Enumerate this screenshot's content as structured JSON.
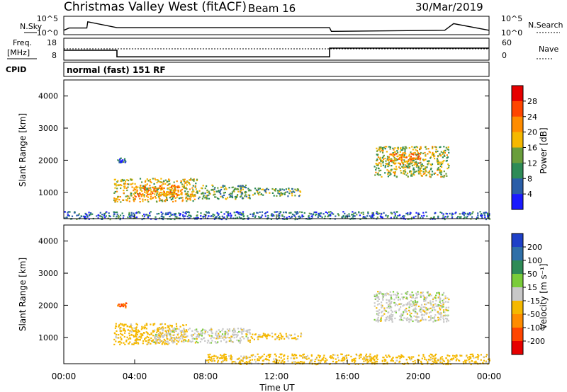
{
  "header": {
    "station": "Christmas Valley West (fitACF)",
    "beam": "Beam 16",
    "date": "30/Mar/2019"
  },
  "nsky_panel": {
    "left_label": "N.Sky",
    "left_ticks": [
      "10^5",
      "10^0"
    ],
    "right_label": "N.Search",
    "right_ticks": [
      "10^5",
      "10^0"
    ]
  },
  "freq_panel": {
    "left_label_1": "Freq.",
    "left_label_2": "[MHz]",
    "left_ticks": [
      "18",
      "8"
    ],
    "right_label": "Nave",
    "right_ticks": [
      "60",
      "0"
    ]
  },
  "cpid": {
    "label": "CPID",
    "value": "normal (fast) 151 RF"
  },
  "power_panel": {
    "ylabel": "Slant Range [km]",
    "yticks": [
      "4000",
      "3000",
      "2000",
      "1000"
    ],
    "colorbar_label": "Power [dB]",
    "colorbar_ticks": [
      "28",
      "24",
      "20",
      "16",
      "12",
      "8",
      "4"
    ],
    "colorbar_colors": [
      "#e60000",
      "#ff4500",
      "#ff8c00",
      "#f5b800",
      "#6a9e3c",
      "#2e8b57",
      "#2a5ea8",
      "#1a1aff"
    ]
  },
  "velocity_panel": {
    "ylabel": "Slant Range [km]",
    "yticks": [
      "4000",
      "3000",
      "2000",
      "1000"
    ],
    "colorbar_label": "Velocity [m s⁻¹]",
    "colorbar_ticks": [
      "200",
      "100",
      "50",
      "15",
      "-15",
      "-50",
      "-100",
      "-200"
    ],
    "colorbar_colors": [
      "#1e40c8",
      "#2f6fa8",
      "#2e8b57",
      "#7acc3a",
      "#c8c8c8",
      "#f5b800",
      "#ff8c00",
      "#ff4500",
      "#e60000"
    ]
  },
  "x_axis": {
    "ticks": [
      "00:00",
      "04:00",
      "08:00",
      "12:00",
      "16:00",
      "20:00",
      "00:00"
    ],
    "label": "Time UT"
  },
  "chart_data": [
    {
      "type": "line",
      "name": "N.Sky / N.Search noise",
      "x": [
        0,
        0.3,
        1.3,
        1.35,
        3,
        3.1,
        15,
        15.1,
        21.5,
        22,
        24
      ],
      "y": [
        1.2,
        1.8,
        1.8,
        3.5,
        1.9,
        1.9,
        1.9,
        0.9,
        1.2,
        3.0,
        1.2
      ],
      "xlim": [
        0,
        24
      ],
      "ylim_log10": [
        0,
        5
      ]
    },
    {
      "type": "line",
      "name": "Transmit frequency [MHz]",
      "series": [
        {
          "name": "Freq.",
          "x": [
            0,
            3,
            3,
            15,
            15,
            24
          ],
          "y": [
            12.5,
            12.5,
            9.5,
            9.5,
            13.5,
            13.5
          ]
        }
      ],
      "xlim": [
        0,
        24
      ],
      "ylim": [
        8,
        18
      ]
    },
    {
      "type": "heatmap",
      "quantity": "Power [dB]",
      "x_unit": "hours UT",
      "y_unit": "slant range km",
      "xlim": [
        0,
        24
      ],
      "ylim": [
        180,
        4500
      ],
      "regions": [
        {
          "x0": 2.8,
          "x1": 7.5,
          "y0": 720,
          "y1": 1450,
          "value": 16
        },
        {
          "x0": 4.0,
          "x1": 6.5,
          "y0": 880,
          "y1": 1250,
          "value": 20
        },
        {
          "x0": 7.5,
          "x1": 10.5,
          "y0": 800,
          "y1": 1250,
          "value": 12
        },
        {
          "x0": 10.5,
          "x1": 13.4,
          "y0": 900,
          "y1": 1150,
          "value": 12
        },
        {
          "x0": 17.5,
          "x1": 21.7,
          "y0": 1500,
          "y1": 2450,
          "value": 14
        },
        {
          "x0": 18.2,
          "x1": 20.2,
          "y0": 1900,
          "y1": 2250,
          "value": 20
        },
        {
          "x0": 3.0,
          "x1": 3.5,
          "y0": 1950,
          "y1": 2100,
          "value": 8
        },
        {
          "x0": 0,
          "x1": 24,
          "y0": 180,
          "y1": 420,
          "value": 8
        }
      ]
    },
    {
      "type": "heatmap",
      "quantity": "Velocity [m s-1]",
      "x_unit": "hours UT",
      "y_unit": "slant range km",
      "xlim": [
        0,
        24
      ],
      "ylim": [
        180,
        4500
      ],
      "regions": [
        {
          "x0": 2.8,
          "x1": 7.0,
          "y0": 800,
          "y1": 1450,
          "value": -30
        },
        {
          "x0": 5.0,
          "x1": 10.5,
          "y0": 850,
          "y1": 1300,
          "value": 0
        },
        {
          "x0": 10.5,
          "x1": 13.4,
          "y0": 950,
          "y1": 1150,
          "value": -30
        },
        {
          "x0": 17.5,
          "x1": 21.7,
          "y0": 1500,
          "y1": 2450,
          "value": 0
        },
        {
          "x0": 3.0,
          "x1": 3.5,
          "y0": 1950,
          "y1": 2100,
          "value": -100
        },
        {
          "x0": 8,
          "x1": 24,
          "y0": 180,
          "y1": 500,
          "value": -30
        }
      ]
    }
  ]
}
